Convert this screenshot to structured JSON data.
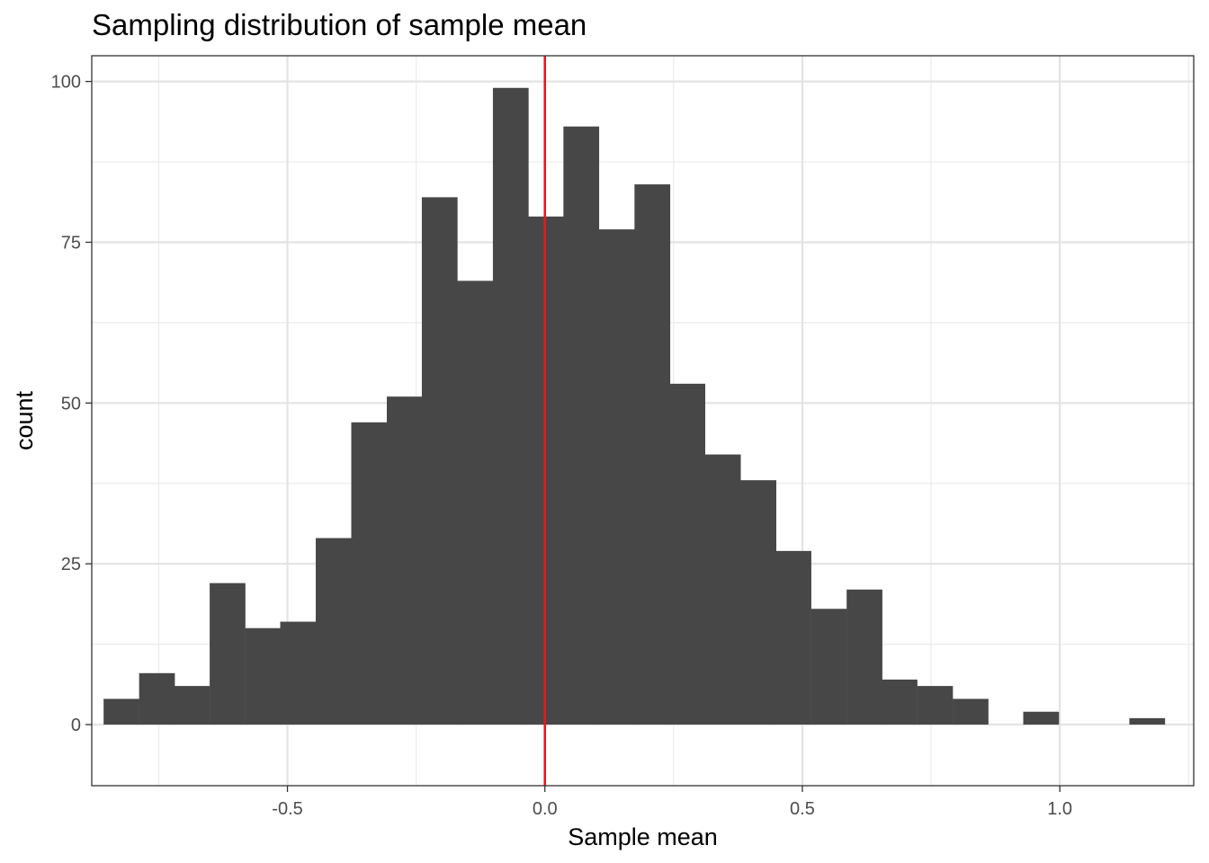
{
  "chart_data": {
    "type": "histogram",
    "title": "Sampling distribution of sample mean",
    "xlabel": "Sample mean",
    "ylabel": "count",
    "xlim": [
      -0.88,
      1.26
    ],
    "ylim": [
      -9.5,
      104
    ],
    "x_ticks": [
      -0.5,
      0.0,
      0.5,
      1.0
    ],
    "x_tick_labels": [
      "-0.5",
      "0.0",
      "0.5",
      "1.0"
    ],
    "y_ticks": [
      0,
      25,
      50,
      75,
      100
    ],
    "y_tick_labels": [
      "0",
      "25",
      "50",
      "75",
      "100"
    ],
    "x_minor": [
      -0.75,
      -0.25,
      0.25,
      0.75,
      1.25
    ],
    "y_minor": [
      12.5,
      37.5,
      62.5,
      87.5
    ],
    "bin_width": 0.0687,
    "bins": [
      {
        "x0": -0.857,
        "count": 4
      },
      {
        "x0": -0.788,
        "count": 8
      },
      {
        "x0": -0.72,
        "count": 6
      },
      {
        "x0": -0.651,
        "count": 22
      },
      {
        "x0": -0.582,
        "count": 15
      },
      {
        "x0": -0.514,
        "count": 16
      },
      {
        "x0": -0.445,
        "count": 29
      },
      {
        "x0": -0.376,
        "count": 47
      },
      {
        "x0": -0.307,
        "count": 51
      },
      {
        "x0": -0.239,
        "count": 82
      },
      {
        "x0": -0.17,
        "count": 69
      },
      {
        "x0": -0.101,
        "count": 99
      },
      {
        "x0": -0.033,
        "count": 79
      },
      {
        "x0": 0.036,
        "count": 93
      },
      {
        "x0": 0.105,
        "count": 77
      },
      {
        "x0": 0.174,
        "count": 84
      },
      {
        "x0": 0.242,
        "count": 53
      },
      {
        "x0": 0.311,
        "count": 42
      },
      {
        "x0": 0.38,
        "count": 38
      },
      {
        "x0": 0.448,
        "count": 27
      },
      {
        "x0": 0.517,
        "count": 18
      },
      {
        "x0": 0.586,
        "count": 21
      },
      {
        "x0": 0.654,
        "count": 7
      },
      {
        "x0": 0.723,
        "count": 6
      },
      {
        "x0": 0.792,
        "count": 4
      },
      {
        "x0": 0.861,
        "count": 0
      },
      {
        "x0": 0.929,
        "count": 2
      },
      {
        "x0": 0.998,
        "count": 0
      },
      {
        "x0": 1.067,
        "count": 0
      },
      {
        "x0": 1.135,
        "count": 1
      }
    ],
    "vline": {
      "x": 0.0,
      "color": "#e41a1c"
    },
    "bar_color": "#474747",
    "grid": true
  }
}
